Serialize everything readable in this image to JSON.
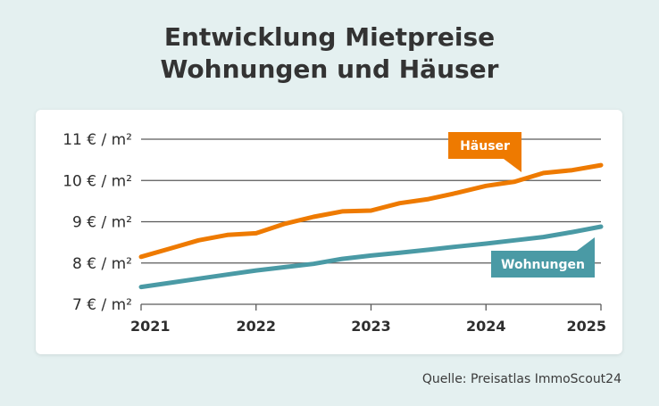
{
  "title_line1": "Entwicklung Mietpreise",
  "title_line2": "Wohnungen und Häuser",
  "source": "Quelle: Preisatlas ImmoScout24",
  "chart_data": {
    "type": "line",
    "title": "Entwicklung Mietpreise Wohnungen und Häuser",
    "xlabel": "",
    "ylabel": "",
    "xlim": [
      2021,
      2025
    ],
    "ylim": [
      7,
      11
    ],
    "x_ticks": [
      "2021",
      "2022",
      "2023",
      "2024",
      "2025"
    ],
    "y_ticks": [
      {
        "value": 11,
        "label": "11 € / m²"
      },
      {
        "value": 10,
        "label": "10 € / m²"
      },
      {
        "value": 9,
        "label": "9 € / m²"
      },
      {
        "value": 8,
        "label": "8 € / m²"
      },
      {
        "value": 7,
        "label": "7 € / m²"
      }
    ],
    "grid": true,
    "series": [
      {
        "name": "Häuser",
        "color": "#ee7a00",
        "points": [
          [
            2021.0,
            8.15
          ],
          [
            2021.25,
            8.35
          ],
          [
            2021.5,
            8.55
          ],
          [
            2021.75,
            8.68
          ],
          [
            2022.0,
            8.72
          ],
          [
            2022.25,
            8.95
          ],
          [
            2022.5,
            9.12
          ],
          [
            2022.75,
            9.25
          ],
          [
            2023.0,
            9.27
          ],
          [
            2023.25,
            9.45
          ],
          [
            2023.5,
            9.55
          ],
          [
            2023.75,
            9.7
          ],
          [
            2024.0,
            9.87
          ],
          [
            2024.25,
            9.97
          ],
          [
            2024.5,
            10.18
          ],
          [
            2024.75,
            10.25
          ],
          [
            2025.0,
            10.37
          ]
        ]
      },
      {
        "name": "Wohnungen",
        "color": "#4a9aa5",
        "points": [
          [
            2021.0,
            7.42
          ],
          [
            2021.25,
            7.52
          ],
          [
            2021.5,
            7.62
          ],
          [
            2021.75,
            7.72
          ],
          [
            2022.0,
            7.82
          ],
          [
            2022.25,
            7.9
          ],
          [
            2022.5,
            7.98
          ],
          [
            2022.75,
            8.1
          ],
          [
            2023.0,
            8.18
          ],
          [
            2023.25,
            8.25
          ],
          [
            2023.5,
            8.32
          ],
          [
            2023.75,
            8.4
          ],
          [
            2024.0,
            8.47
          ],
          [
            2024.25,
            8.55
          ],
          [
            2024.5,
            8.63
          ],
          [
            2024.75,
            8.75
          ],
          [
            2025.0,
            8.88
          ]
        ]
      }
    ],
    "annotations": [
      {
        "text": "Häuser",
        "series": "Häuser",
        "color": "#ee7a00"
      },
      {
        "text": "Wohnungen",
        "series": "Wohnungen",
        "color": "#4a9aa5"
      }
    ]
  }
}
